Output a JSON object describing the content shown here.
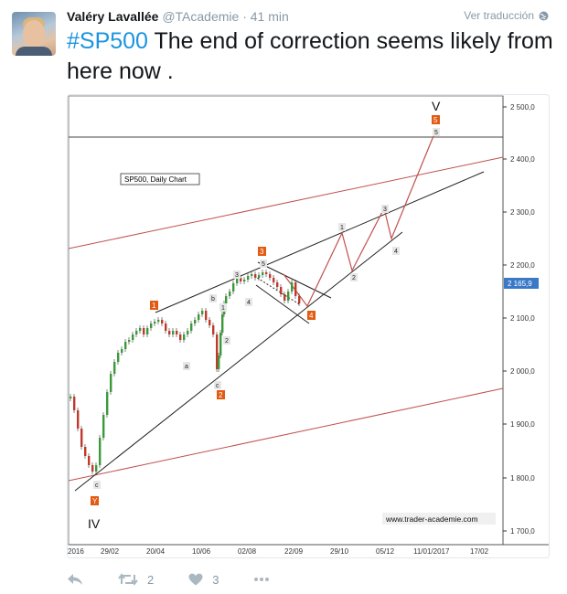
{
  "tweet": {
    "author_name": "Valéry Lavallée",
    "handle": "@TAcademie",
    "separator": "·",
    "time": "41 min",
    "translate_label": "Ver traducción",
    "hashtag": "#SP500",
    "text_rest": " The end of correction seems likely from here now ."
  },
  "chart": {
    "chart_label": "SP500, Daily Chart",
    "watermark": "www.trader-academie.com",
    "price_tag": "2 165,9",
    "y_ticks": [
      "2 500,0",
      "2 400,0",
      "2 300,0",
      "2 200,0",
      "2 100,0",
      "2 000,0",
      "1 900,0",
      "1 800,0",
      "1 700,0"
    ],
    "x_ticks": [
      "2016",
      "29/02",
      "20/04",
      "10/06",
      "02/08",
      "22/09",
      "29/10",
      "05/12",
      "11/01/2017",
      "17/02"
    ],
    "wave_labels_major": {
      "IV": "IV",
      "V": "V"
    },
    "wave_labels_orange": [
      "1",
      "2",
      "3",
      "4",
      "5",
      "Y"
    ],
    "wave_labels_minor": [
      "a",
      "b",
      "c",
      "1",
      "2",
      "3",
      "4",
      "5",
      "1",
      "2",
      "3",
      "4",
      "5",
      "c"
    ]
  },
  "actions": {
    "retweet_count": "2",
    "like_count": "3"
  },
  "colors": {
    "hashtag": "#1b95e0",
    "meta": "#8899a6",
    "orange_label": "#e25b12",
    "channel_red": "#c0504d"
  }
}
